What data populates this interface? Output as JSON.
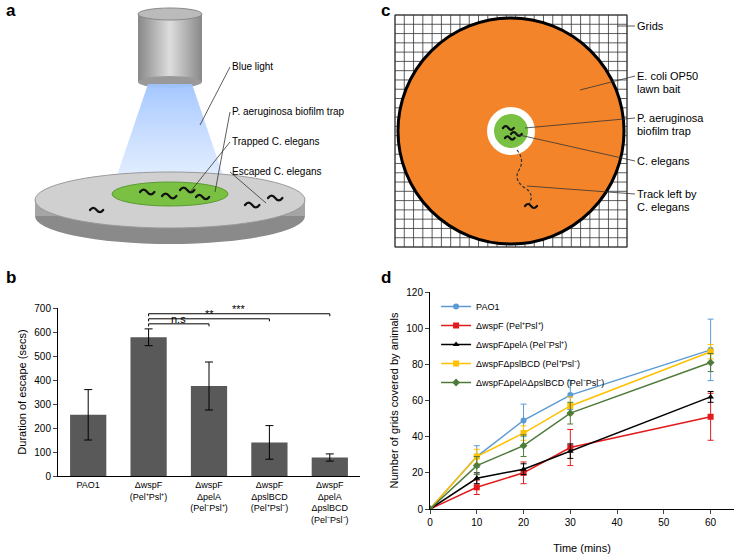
{
  "diagrams": [
    {
      "panel": "a",
      "labels": [
        "Blue light",
        "P. aeruginosa biofilm trap",
        "Trapped C. elegans",
        "Escaped C. elegans"
      ]
    },
    {
      "panel": "c",
      "labels": [
        "Grids",
        "E. coli OP50\nlawn bait",
        "P. aeruginosa\nbiofilm trap",
        "C. elegans",
        "Track left by\nC. elegans"
      ]
    }
  ],
  "chart_data": [
    {
      "panel": "b",
      "type": "bar",
      "categories": [
        "PAO1",
        "ΔwspF\n(Pel⁺Psl⁺)",
        "ΔwspF\nΔpelA\n(Pel⁻Psl⁺)",
        "ΔwspF\nΔpslBCD\n(Pel⁺Psl⁻)",
        "ΔwspF\nΔpelA\nΔpslBCD\n(Pel⁻Psl⁻)"
      ],
      "values": [
        255,
        578,
        375,
        140,
        77
      ],
      "errors": [
        105,
        35,
        100,
        70,
        15
      ],
      "color": "#595959",
      "y_label": "Duration of escape (secs)",
      "ylim": [
        0,
        700
      ],
      "yticks": [
        0,
        100,
        200,
        300,
        400,
        500,
        600,
        700
      ],
      "grid": false,
      "significance": [
        {
          "from": "ΔwspF\n(Pel⁺Psl⁺)",
          "to": "ΔwspF\nΔpelA\n(Pel⁻Psl⁺)",
          "label": "n.s"
        },
        {
          "from": "ΔwspF\n(Pel⁺Psl⁺)",
          "to": "ΔwspF\nΔpslBCD\n(Pel⁺Psl⁻)",
          "label": "**"
        },
        {
          "from": "ΔwspF\n(Pel⁺Psl⁺)",
          "to": "ΔwspF\nΔpelA\nΔpslBCD\n(Pel⁻Psl⁻)",
          "label": "***"
        }
      ]
    },
    {
      "panel": "d",
      "type": "line",
      "x": [
        0,
        10,
        20,
        30,
        60
      ],
      "xlim": [
        0,
        65
      ],
      "xticks": [
        0,
        10,
        20,
        30,
        40,
        50,
        60
      ],
      "ylim": [
        0,
        120
      ],
      "yticks": [
        0,
        20,
        40,
        60,
        80,
        100,
        120
      ],
      "x_label": "Time (mins)",
      "y_label": "Number of grids covered by animals",
      "legend": "upper left",
      "grid": false,
      "series": [
        {
          "name": "PAO1",
          "color": "#5B9BD5",
          "marker": "circle",
          "values": [
            0,
            29,
            49,
            63,
            88
          ],
          "errors": [
            0,
            6,
            9,
            8,
            17
          ]
        },
        {
          "name": "ΔwspF (Pel⁺Psl⁺)",
          "color": "#E31A1C",
          "marker": "square",
          "values": [
            0,
            12,
            20,
            34,
            51
          ],
          "errors": [
            0,
            4,
            6,
            10,
            13
          ]
        },
        {
          "name": "ΔwspFΔpelA (Pel⁻Psl⁺)",
          "color": "#000000",
          "marker": "triangle-up",
          "values": [
            0,
            17,
            22,
            32,
            62
          ],
          "errors": [
            0,
            3,
            3,
            4,
            3
          ]
        },
        {
          "name": "ΔwspFΔpslBCD (Pel⁺Psl⁻)",
          "color": "#FFC000",
          "marker": "square",
          "values": [
            0,
            29,
            42,
            57,
            87
          ],
          "errors": [
            0,
            4,
            4,
            5,
            4
          ]
        },
        {
          "name": "ΔwspFΔpelAΔpslBCD (Pel⁻Psl⁻)",
          "color": "#4E7A3A",
          "marker": "diamond",
          "values": [
            0,
            24,
            35,
            53,
            81
          ],
          "errors": [
            0,
            5,
            6,
            6,
            5
          ]
        }
      ]
    }
  ]
}
